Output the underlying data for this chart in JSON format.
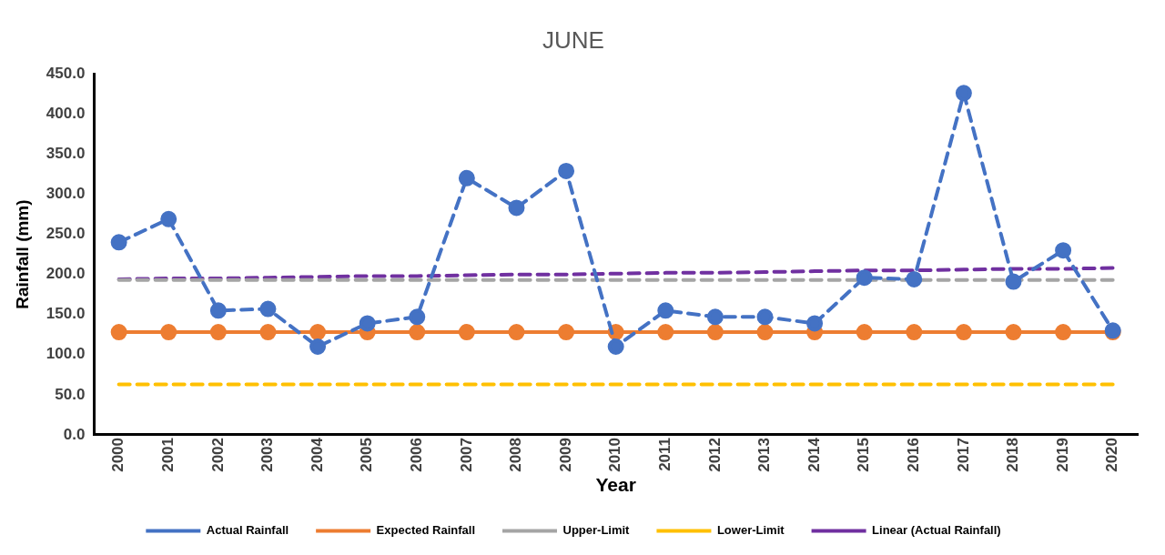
{
  "chart_data": {
    "type": "line",
    "title": "JUNE",
    "xlabel": "Year",
    "ylabel": "Rainfall (mm)",
    "categories": [
      "2000",
      "2001",
      "2002",
      "2003",
      "2004",
      "2005",
      "2006",
      "2007",
      "2008",
      "2009",
      "2010",
      "2011",
      "2012",
      "2013",
      "2014",
      "2015",
      "2016",
      "2017",
      "2018",
      "2019",
      "2020"
    ],
    "series": [
      {
        "name": "Actual Rainfall",
        "color": "#4472c4",
        "line_style": "dashed",
        "marker": "circle",
        "values": [
          240,
          269,
          155,
          157,
          110,
          139,
          147,
          320,
          283,
          329,
          110,
          155,
          147,
          147,
          139,
          196,
          194,
          426,
          191,
          230,
          130
        ]
      },
      {
        "name": "Expected Rainfall",
        "color": "#ed7d31",
        "line_style": "solid",
        "marker": "circle",
        "values": [
          128,
          128,
          128,
          128,
          128,
          128,
          128,
          128,
          128,
          128,
          128,
          128,
          128,
          128,
          128,
          128,
          128,
          128,
          128,
          128,
          128
        ]
      },
      {
        "name": "Upper-Limit",
        "color": "#a5a5a5",
        "line_style": "dashed",
        "marker": "none",
        "values": [
          193,
          193,
          193,
          193,
          193,
          193,
          193,
          193,
          193,
          193,
          193,
          193,
          193,
          193,
          193,
          193,
          193,
          193,
          193,
          193,
          193
        ]
      },
      {
        "name": "Lower-Limit",
        "color": "#ffc000",
        "line_style": "dashed",
        "marker": "none",
        "values": [
          63,
          63,
          63,
          63,
          63,
          63,
          63,
          63,
          63,
          63,
          63,
          63,
          63,
          63,
          63,
          63,
          63,
          63,
          63,
          63,
          63
        ]
      },
      {
        "name": "Linear (Actual Rainfall)",
        "color": "#7030a0",
        "line_style": "dashed",
        "marker": "none",
        "values": [
          194,
          195,
          195,
          196,
          197,
          198,
          198,
          199,
          200,
          200,
          201,
          202,
          202,
          203,
          204,
          205,
          205,
          206,
          207,
          207,
          208
        ]
      }
    ],
    "ylim": [
      0,
      450
    ],
    "yticks": [
      {
        "value": 0,
        "label": "0.0"
      },
      {
        "value": 50,
        "label": "50.0"
      },
      {
        "value": 100,
        "label": "100.0"
      },
      {
        "value": 150,
        "label": "150.0"
      },
      {
        "value": 200,
        "label": "200.0"
      },
      {
        "value": 250,
        "label": "250.0"
      },
      {
        "value": 300,
        "label": "300.0"
      },
      {
        "value": 350,
        "label": "350.0"
      },
      {
        "value": 400,
        "label": "400.0"
      },
      {
        "value": 450,
        "label": "450.0"
      }
    ],
    "grid": false,
    "legend": "bottom"
  }
}
